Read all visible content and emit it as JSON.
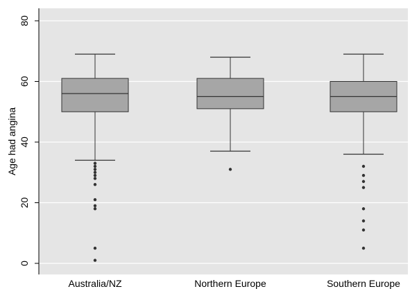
{
  "chart_data": {
    "type": "boxplot",
    "ylabel": "Age had angina",
    "xlabel": "",
    "ylim": [
      0,
      80
    ],
    "yticks": [
      0,
      20,
      40,
      60,
      80
    ],
    "grid": true,
    "colors": {
      "plot_bg": "#e5e5e5",
      "box_fill": "#a6a6a6",
      "stroke": "#333333",
      "grid": "#ffffff",
      "outlier": "#333333"
    },
    "categories": [
      "Australia/NZ",
      "Northern Europe",
      "Southern Europe"
    ],
    "boxes": [
      {
        "category": "Australia/NZ",
        "whisker_low": 34,
        "q1": 50,
        "median": 56,
        "q3": 61,
        "whisker_high": 69,
        "outliers": [
          1,
          5,
          18,
          19,
          21,
          26,
          28,
          29,
          30,
          31,
          32,
          33
        ]
      },
      {
        "category": "Northern Europe",
        "whisker_low": 37,
        "q1": 51,
        "median": 55,
        "q3": 61,
        "whisker_high": 68,
        "outliers": [
          31
        ]
      },
      {
        "category": "Southern Europe",
        "whisker_low": 36,
        "q1": 50,
        "median": 55,
        "q3": 60,
        "whisker_high": 69,
        "outliers": [
          5,
          11,
          14,
          18,
          25,
          27,
          29,
          32
        ]
      }
    ]
  }
}
